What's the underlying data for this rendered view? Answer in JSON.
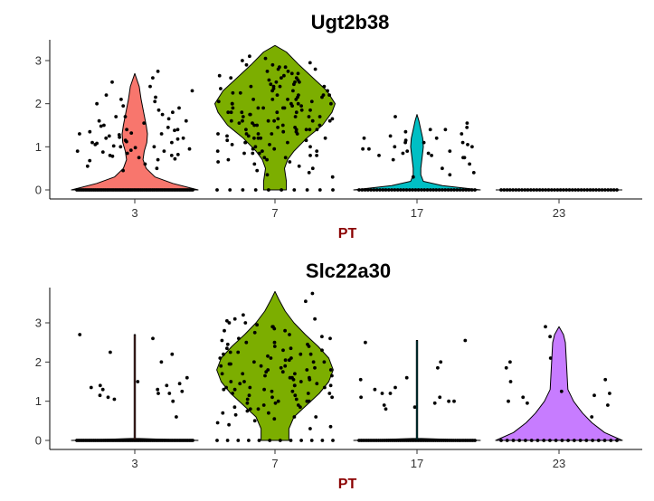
{
  "chart_data": [
    {
      "type": "violin",
      "title": "Ugt2b38",
      "xlabel": "PT",
      "ylabel": "",
      "ylim": [
        -0.2,
        3.5
      ],
      "yticks": [
        0,
        1,
        2,
        3
      ],
      "categories": [
        "3",
        "7",
        "17",
        "23"
      ],
      "colors": {
        "3": "#F8766D",
        "7": "#7CAE00",
        "17": "#00BFC4",
        "23": "#C77CFF"
      },
      "violins": [
        {
          "category": "3",
          "min": 0,
          "max": 2.7,
          "density": [
            [
              0,
              1.0
            ],
            [
              0.15,
              0.6
            ],
            [
              0.3,
              0.32
            ],
            [
              0.5,
              0.18
            ],
            [
              0.7,
              0.13
            ],
            [
              0.9,
              0.15
            ],
            [
              1.1,
              0.19
            ],
            [
              1.3,
              0.2
            ],
            [
              1.5,
              0.18
            ],
            [
              1.8,
              0.14
            ],
            [
              2.1,
              0.1
            ],
            [
              2.4,
              0.07
            ],
            [
              2.7,
              0.0
            ]
          ]
        },
        {
          "category": "7",
          "min": 0,
          "max": 3.35,
          "density": [
            [
              0,
              0.18
            ],
            [
              0.2,
              0.18
            ],
            [
              0.5,
              0.15
            ],
            [
              0.7,
              0.2
            ],
            [
              0.9,
              0.3
            ],
            [
              1.2,
              0.5
            ],
            [
              1.5,
              0.75
            ],
            [
              1.8,
              0.9
            ],
            [
              2.0,
              0.95
            ],
            [
              2.3,
              0.82
            ],
            [
              2.6,
              0.6
            ],
            [
              2.9,
              0.38
            ],
            [
              3.2,
              0.18
            ],
            [
              3.35,
              0.0
            ]
          ]
        },
        {
          "category": "17",
          "min": 0,
          "max": 1.75,
          "density": [
            [
              0,
              1.0
            ],
            [
              0.1,
              0.4
            ],
            [
              0.2,
              0.1
            ],
            [
              0.35,
              0.06
            ],
            [
              0.5,
              0.06
            ],
            [
              0.75,
              0.08
            ],
            [
              1.0,
              0.1
            ],
            [
              1.2,
              0.09
            ],
            [
              1.4,
              0.06
            ],
            [
              1.6,
              0.03
            ],
            [
              1.75,
              0.0
            ]
          ]
        },
        {
          "category": "23",
          "min": 0,
          "max": 0,
          "density": [
            [
              0,
              1.0
            ]
          ]
        }
      ],
      "points": [
        {
          "category": "3",
          "values_nonzero": [
            2.6,
            2.5,
            2.4,
            2.3,
            2.15,
            2.05,
            2.0,
            1.9,
            1.85,
            1.8,
            1.75,
            1.7,
            1.65,
            1.6,
            1.55,
            1.5,
            1.48,
            1.45,
            1.4,
            1.38,
            1.35,
            1.32,
            1.3,
            1.28,
            1.25,
            1.22,
            1.2,
            1.18,
            1.15,
            1.12,
            1.1,
            1.08,
            1.05,
            1.02,
            1.0,
            0.98,
            0.95,
            0.92,
            0.9,
            0.88,
            0.85,
            0.82,
            0.8,
            0.78,
            0.75,
            0.72,
            0.7,
            0.68,
            0.6,
            0.55,
            0.5,
            0.45,
            2.75,
            2.2,
            2.1,
            1.95,
            1.7,
            1.6,
            1.4,
            1.3,
            1.2,
            1.1,
            1.0,
            0.9,
            0.8
          ],
          "zero_count": 70
        },
        {
          "category": "7",
          "values_nonzero": [
            3.1,
            3.05,
            3.0,
            2.95,
            2.9,
            2.85,
            2.8,
            2.75,
            2.7,
            2.65,
            2.6,
            2.55,
            2.5,
            2.45,
            2.4,
            2.35,
            2.3,
            2.25,
            2.2,
            2.15,
            2.1,
            2.05,
            2.0,
            1.95,
            1.9,
            1.85,
            1.8,
            1.75,
            1.7,
            1.65,
            1.6,
            1.55,
            1.5,
            1.45,
            1.4,
            1.35,
            1.3,
            1.25,
            1.2,
            1.15,
            1.1,
            1.05,
            1.0,
            0.95,
            0.9,
            0.85,
            0.8,
            0.75,
            0.7,
            0.65,
            0.6,
            0.55,
            0.5,
            0.4,
            0.3,
            0.75,
            0.8,
            0.85,
            0.9,
            2.9,
            2.8,
            2.7,
            2.6,
            2.5,
            2.4,
            2.3,
            2.2,
            2.1,
            2.0,
            1.9,
            1.8,
            1.7,
            1.6,
            1.5,
            1.4,
            1.3,
            1.2,
            1.1,
            1.0,
            2.6,
            2.4,
            2.2,
            2.0,
            1.8,
            1.6,
            1.4,
            1.2,
            2.3,
            2.1,
            1.9,
            1.7,
            1.5,
            1.3,
            1.1,
            0.9,
            0.7,
            2.0,
            1.8,
            1.6,
            1.4,
            2.5,
            2.2,
            1.9,
            1.6,
            1.3,
            2.4,
            2.1,
            1.8,
            1.5,
            1.2,
            2.0,
            1.7,
            1.4,
            1.9,
            1.6,
            1.3,
            1.85,
            1.55,
            2.05,
            1.75,
            1.45,
            1.95,
            1.65,
            2.15,
            1.35,
            1.25,
            2.25,
            1.15,
            2.35,
            1.05,
            0.95,
            2.45,
            0.85,
            2.55,
            0.65,
            2.65,
            0.45,
            2.75,
            0.35,
            2.85
          ],
          "zero_count": 10
        },
        {
          "category": "17",
          "values_nonzero": [
            1.7,
            1.55,
            1.45,
            1.4,
            1.35,
            1.3,
            1.25,
            1.2,
            1.15,
            1.1,
            1.05,
            1.0,
            0.95,
            0.9,
            0.85,
            0.8,
            0.75,
            0.7,
            0.6,
            0.5,
            0.4,
            0.35,
            0.3,
            1.2,
            1.1,
            1.0,
            0.9,
            0.85,
            0.8,
            1.1,
            0.95,
            0.75,
            1.4
          ],
          "zero_count": 40
        },
        {
          "category": "23",
          "values_nonzero": [],
          "zero_count": 40
        }
      ]
    },
    {
      "type": "violin",
      "title": "Slc22a30",
      "xlabel": "PT",
      "ylabel": "",
      "ylim": [
        -0.2,
        3.9
      ],
      "yticks": [
        0,
        1,
        2,
        3
      ],
      "categories": [
        "3",
        "7",
        "17",
        "23"
      ],
      "colors": {
        "3": "#F8766D",
        "7": "#7CAE00",
        "17": "#00BFC4",
        "23": "#C77CFF"
      },
      "violins": [
        {
          "category": "3",
          "min": 0,
          "max": 2.7,
          "density": [
            [
              0,
              1.0
            ],
            [
              0.05,
              0.01
            ],
            [
              2.7,
              0.01
            ]
          ]
        },
        {
          "category": "7",
          "min": 0,
          "max": 3.8,
          "density": [
            [
              0,
              0.22
            ],
            [
              0.3,
              0.22
            ],
            [
              0.6,
              0.3
            ],
            [
              0.9,
              0.5
            ],
            [
              1.2,
              0.7
            ],
            [
              1.5,
              0.85
            ],
            [
              1.8,
              0.92
            ],
            [
              2.1,
              0.85
            ],
            [
              2.4,
              0.68
            ],
            [
              2.7,
              0.48
            ],
            [
              3.0,
              0.3
            ],
            [
              3.3,
              0.16
            ],
            [
              3.6,
              0.06
            ],
            [
              3.8,
              0.0
            ]
          ]
        },
        {
          "category": "17",
          "min": 0,
          "max": 2.55,
          "density": [
            [
              0,
              1.0
            ],
            [
              0.05,
              0.01
            ],
            [
              2.55,
              0.01
            ]
          ]
        },
        {
          "category": "23",
          "min": 0,
          "max": 2.9,
          "density": [
            [
              0,
              1.0
            ],
            [
              0.2,
              0.72
            ],
            [
              0.45,
              0.52
            ],
            [
              0.7,
              0.37
            ],
            [
              1.0,
              0.23
            ],
            [
              1.3,
              0.14
            ],
            [
              1.6,
              0.13
            ],
            [
              1.9,
              0.12
            ],
            [
              2.2,
              0.11
            ],
            [
              2.5,
              0.1
            ],
            [
              2.7,
              0.07
            ],
            [
              2.9,
              0.0
            ]
          ]
        }
      ],
      "points": [
        {
          "category": "3",
          "values_nonzero": [
            2.7,
            2.6,
            2.25,
            2.2,
            2.0,
            1.6,
            1.5,
            1.45,
            1.4,
            1.35,
            1.3,
            1.25,
            1.2,
            1.1,
            1.05,
            0.6,
            1.4,
            1.3,
            1.2,
            1.15,
            1.0
          ],
          "zero_count": 70
        },
        {
          "category": "7",
          "values_nonzero": [
            3.75,
            3.55,
            3.2,
            3.1,
            3.05,
            3.0,
            2.95,
            2.9,
            2.85,
            2.8,
            2.75,
            2.7,
            2.65,
            2.6,
            2.55,
            2.5,
            2.45,
            2.4,
            2.35,
            2.3,
            2.25,
            2.2,
            2.15,
            2.1,
            2.05,
            2.0,
            1.95,
            1.9,
            1.85,
            1.8,
            1.75,
            1.7,
            1.65,
            1.6,
            1.55,
            1.5,
            1.45,
            1.4,
            1.35,
            1.3,
            1.25,
            1.2,
            1.15,
            1.1,
            1.05,
            1.0,
            0.95,
            0.9,
            0.85,
            0.8,
            0.75,
            0.7,
            0.65,
            0.6,
            0.55,
            0.5,
            0.45,
            0.4,
            0.35,
            0.3,
            2.8,
            2.6,
            2.4,
            2.2,
            2.0,
            1.8,
            1.6,
            1.4,
            1.2,
            1.0,
            0.8,
            0.6,
            2.5,
            2.3,
            2.1,
            1.9,
            1.7,
            1.5,
            1.3,
            1.1,
            0.9,
            0.7,
            2.2,
            2.0,
            1.8,
            1.6,
            1.4,
            1.2,
            1.0,
            1.9,
            1.7,
            1.5,
            1.3,
            2.1,
            1.85,
            1.65,
            1.45,
            1.25,
            1.05,
            0.85,
            2.35,
            2.05,
            1.75,
            1.55,
            1.35,
            1.15,
            0.95,
            2.45,
            2.25,
            1.95,
            1.35,
            3.1,
            3.0,
            2.9
          ],
          "zero_count": 12
        },
        {
          "category": "17",
          "values_nonzero": [
            2.55,
            2.5,
            2.0,
            1.85,
            1.6,
            1.55,
            1.3,
            1.2,
            1.1,
            1.0,
            0.95,
            0.9,
            0.85,
            0.8,
            1.0,
            1.1,
            1.2,
            1.35
          ],
          "zero_count": 60
        },
        {
          "category": "23",
          "values_nonzero": [
            2.9,
            2.65,
            2.1,
            2.0,
            1.85,
            1.55,
            1.5,
            1.25,
            1.2,
            1.15,
            1.1,
            1.0,
            0.95,
            0.9,
            0.6
          ],
          "zero_count": 20
        }
      ]
    }
  ]
}
